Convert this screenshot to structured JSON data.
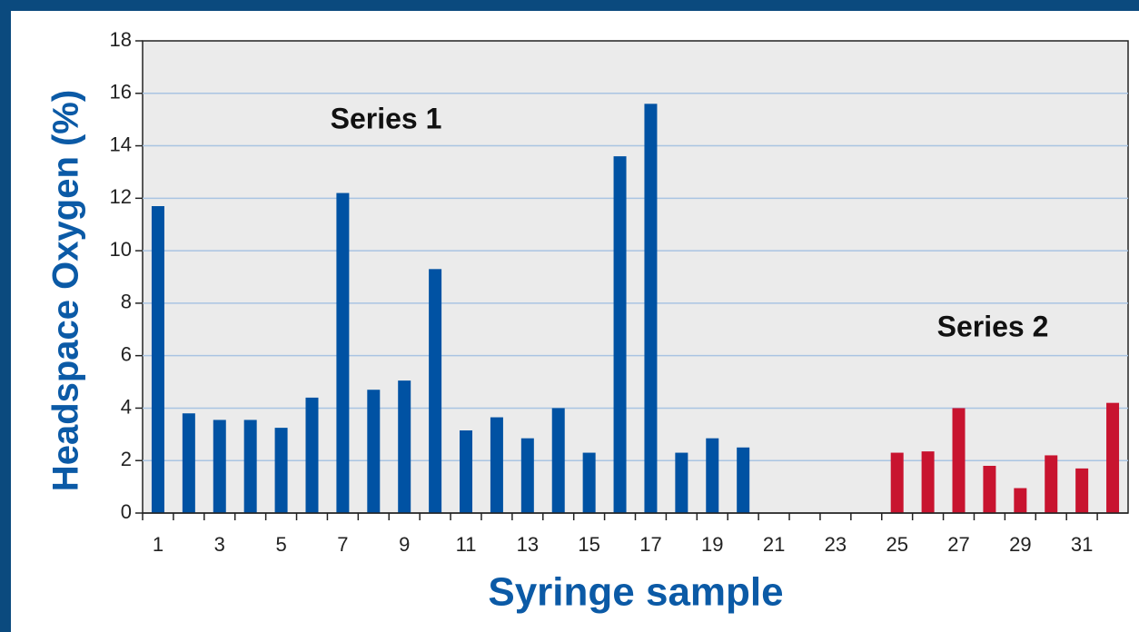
{
  "chart_data": {
    "type": "bar",
    "xlabel": "Syringe sample",
    "ylabel": "Headspace Oxygen (%)",
    "categories": [
      "1",
      null,
      "3",
      null,
      "5",
      null,
      "7",
      null,
      "9",
      null,
      "11",
      null,
      "13",
      null,
      "15",
      null,
      "17",
      null,
      "19",
      null,
      "21",
      null,
      "23",
      null,
      "25",
      null,
      "27",
      null,
      "29",
      null,
      "31",
      null
    ],
    "series": [
      {
        "name": "Series 1",
        "color": "#0052a3",
        "values": [
          11.7,
          3.8,
          3.55,
          3.55,
          3.25,
          4.4,
          12.2,
          4.7,
          5.05,
          9.3,
          3.15,
          3.65,
          2.85,
          4.0,
          2.3,
          13.6,
          15.6,
          2.3,
          2.85,
          2.5,
          null,
          null,
          null,
          null,
          null,
          null,
          null,
          null,
          null,
          null,
          null,
          null
        ]
      },
      {
        "name": "Series 2",
        "color": "#c8142f",
        "values": [
          null,
          null,
          null,
          null,
          null,
          null,
          null,
          null,
          null,
          null,
          null,
          null,
          null,
          null,
          null,
          null,
          null,
          null,
          null,
          null,
          null,
          null,
          null,
          null,
          2.3,
          2.35,
          4.0,
          1.8,
          0.95,
          2.2,
          1.7,
          4.2
        ]
      }
    ],
    "ylim": [
      0,
      18
    ],
    "yticks": [
      0,
      2,
      4,
      6,
      8,
      10,
      12,
      14,
      16,
      18
    ],
    "grid": true
  }
}
